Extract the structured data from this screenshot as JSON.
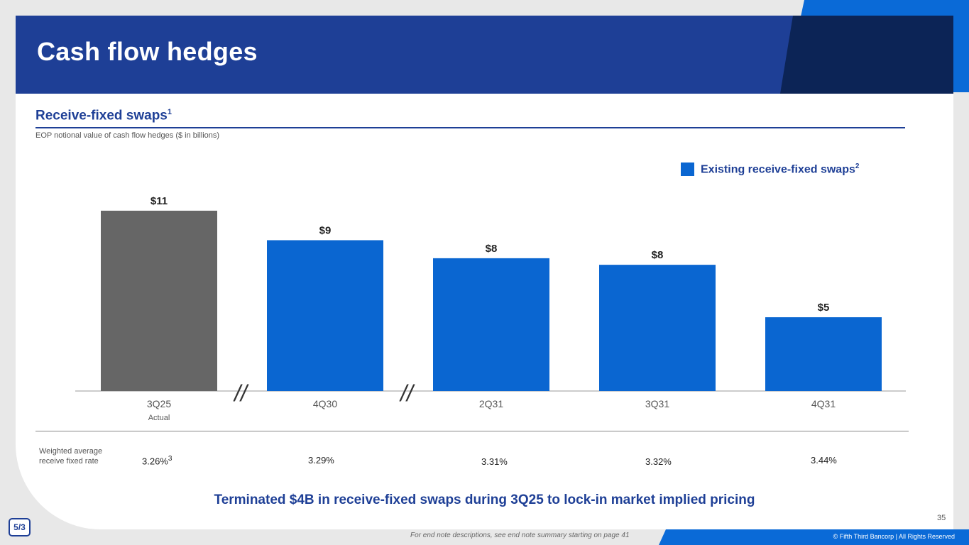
{
  "slide": {
    "title": "Cash flow hedges",
    "section_title": "Receive-fixed swaps",
    "section_title_sup": "1",
    "subtitle": "EOP notional value of cash flow hedges ($ in billions)",
    "takeaway": "Terminated $4B in receive-fixed swaps during 3Q25 to lock-in market implied pricing",
    "page_number": "35",
    "endnote": "For end note descriptions, see end note summary starting on page 41",
    "copyright": "© Fifth Third Bancorp | All Rights Reserved",
    "logo_text": "5/3"
  },
  "legend": {
    "label": "Existing receive-fixed swaps",
    "sup": "2",
    "color": "#0a66d1"
  },
  "chart_data": {
    "type": "bar",
    "title": "",
    "xlabel": "",
    "ylabel": "",
    "categories": [
      "3Q25",
      "4Q30",
      "2Q31",
      "3Q31",
      "4Q31"
    ],
    "category_notes": [
      "Actual",
      "",
      "",
      "",
      ""
    ],
    "values": [
      11,
      9.2,
      8.1,
      7.7,
      4.5
    ],
    "data_labels": [
      "$11",
      "$9",
      "$8",
      "$8",
      "$5"
    ],
    "colors": [
      "#666666",
      "#0a66d1",
      "#0a66d1",
      "#0a66d1",
      "#0a66d1"
    ],
    "axis_break_markers": [
      "//",
      "//"
    ],
    "ylim": [
      0,
      13
    ],
    "grid": false
  },
  "rates": {
    "label": "Weighted average receive fixed rate",
    "values": [
      "3.26%",
      "3.29%",
      "3.31%",
      "3.32%",
      "3.44%"
    ],
    "first_sup": "3"
  }
}
